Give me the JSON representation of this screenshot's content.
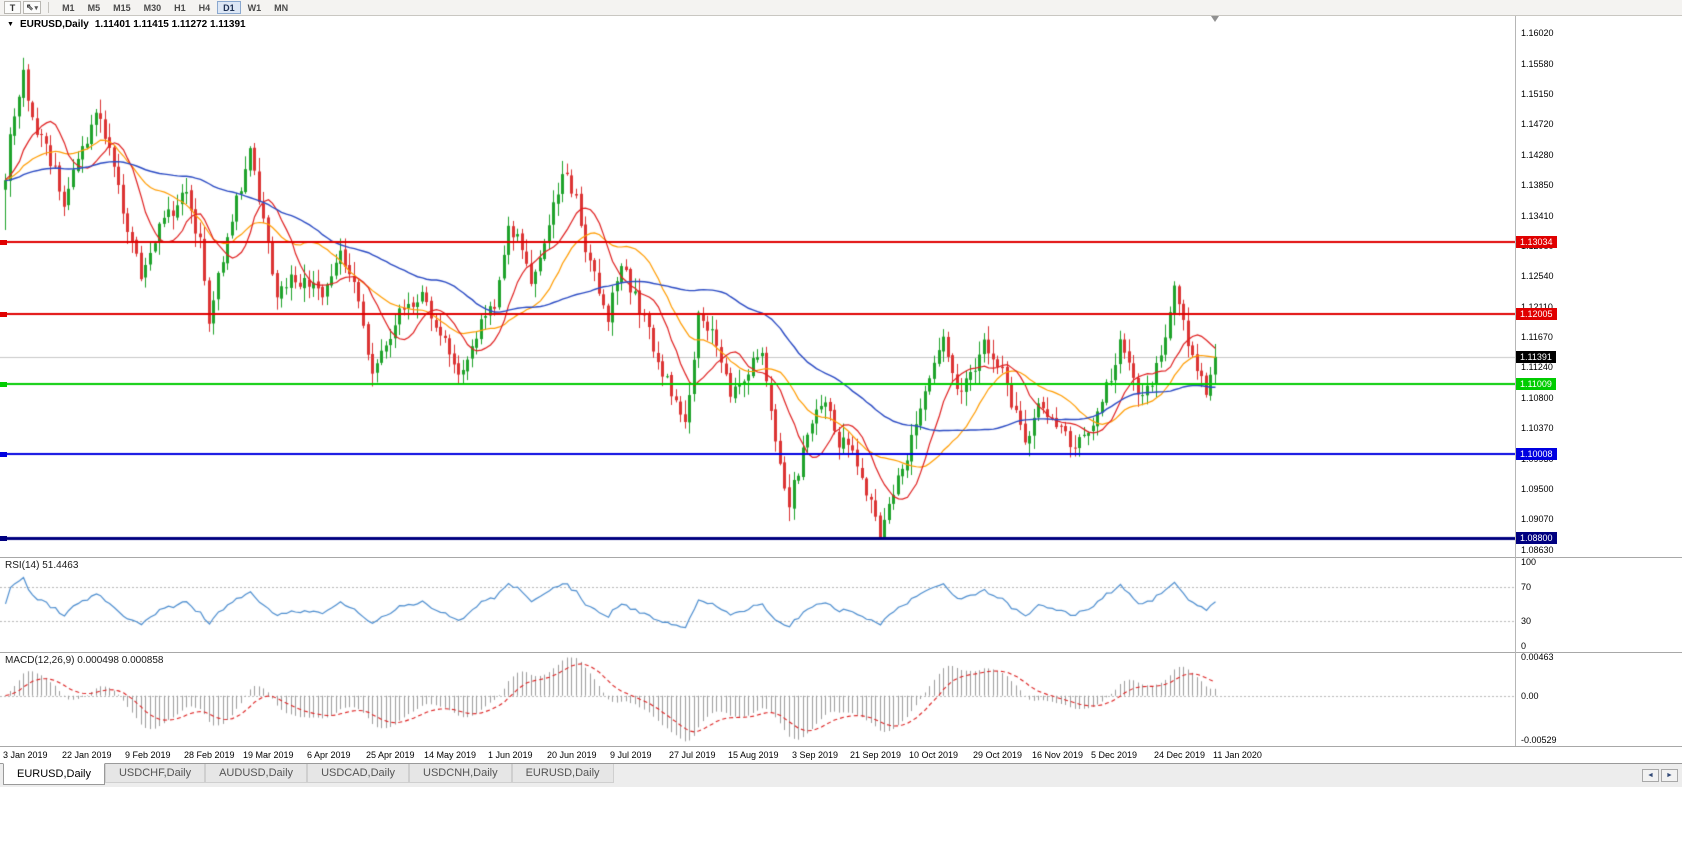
{
  "toolbar": {
    "chart_tool_label": "T",
    "cursor_glyph": "⇖",
    "dropdown_glyph": "▾",
    "timeframes": [
      "M1",
      "M5",
      "M15",
      "M30",
      "H1",
      "H4",
      "D1",
      "W1",
      "MN"
    ],
    "active_timeframe": "D1"
  },
  "chart": {
    "menu_arrow_glyph": "▼",
    "symbol_title": "EURUSD,Daily",
    "ohlc_text": "1.11401 1.11415 1.11272 1.11391"
  },
  "chart_data": {
    "type": "candlestick",
    "title": "EURUSD,Daily",
    "ohlc_display": "1.11401 1.11415 1.11272 1.11391",
    "price_axis_ticks": [
      "1.16020",
      "1.15580",
      "1.15150",
      "1.14720",
      "1.14280",
      "1.13850",
      "1.13410",
      "1.12980",
      "1.12540",
      "1.12110",
      "1.11670",
      "1.11240",
      "1.10800",
      "1.10370",
      "1.09930",
      "1.09500",
      "1.09070",
      "1.08630"
    ],
    "price_max": 1.16263,
    "price_min": 1.0853,
    "candle_count": 268,
    "price_path_anchors": [
      [
        0,
        1.139
      ],
      [
        1,
        1.1455
      ],
      [
        2,
        1.1485
      ],
      [
        4,
        1.155
      ],
      [
        5,
        1.1495
      ],
      [
        7,
        1.1465
      ],
      [
        9,
        1.144
      ],
      [
        13,
        1.1365
      ],
      [
        16,
        1.142
      ],
      [
        20,
        1.149
      ],
      [
        23,
        1.144
      ],
      [
        26,
        1.135
      ],
      [
        30,
        1.1262
      ],
      [
        34,
        1.133
      ],
      [
        40,
        1.137
      ],
      [
        43,
        1.13
      ],
      [
        45,
        1.1195
      ],
      [
        49,
        1.13
      ],
      [
        54,
        1.1445
      ],
      [
        57,
        1.133
      ],
      [
        60,
        1.1225
      ],
      [
        64,
        1.1255
      ],
      [
        70,
        1.123
      ],
      [
        74,
        1.129
      ],
      [
        78,
        1.122
      ],
      [
        81,
        1.112
      ],
      [
        85,
        1.1165
      ],
      [
        88,
        1.1215
      ],
      [
        92,
        1.123
      ],
      [
        96,
        1.118
      ],
      [
        100,
        1.1115
      ],
      [
        104,
        1.1175
      ],
      [
        108,
        1.121
      ],
      [
        111,
        1.133
      ],
      [
        114,
        1.1295
      ],
      [
        116,
        1.125
      ],
      [
        119,
        1.131
      ],
      [
        123,
        1.14
      ],
      [
        126,
        1.137
      ],
      [
        128,
        1.1285
      ],
      [
        133,
        1.12
      ],
      [
        136,
        1.127
      ],
      [
        140,
        1.121
      ],
      [
        145,
        1.112
      ],
      [
        148,
        1.108
      ],
      [
        150,
        1.1035
      ],
      [
        153,
        1.12
      ],
      [
        156,
        1.1175
      ],
      [
        160,
        1.1085
      ],
      [
        163,
        1.1105
      ],
      [
        167,
        1.115
      ],
      [
        171,
        1.099
      ],
      [
        173,
        1.093
      ],
      [
        177,
        1.103
      ],
      [
        181,
        1.1075
      ],
      [
        184,
        1.1015
      ],
      [
        186,
        1.102
      ],
      [
        189,
        1.096
      ],
      [
        193,
        1.0888
      ],
      [
        197,
        1.096
      ],
      [
        201,
        1.104
      ],
      [
        204,
        1.11
      ],
      [
        207,
        1.116
      ],
      [
        211,
        1.108
      ],
      [
        214,
        1.113
      ],
      [
        216,
        1.1155
      ],
      [
        220,
        1.1115
      ],
      [
        225,
        1.1015
      ],
      [
        228,
        1.1075
      ],
      [
        231,
        1.1055
      ],
      [
        236,
        1.1
      ],
      [
        240,
        1.105
      ],
      [
        244,
        1.1105
      ],
      [
        246,
        1.117
      ],
      [
        248,
        1.112
      ],
      [
        251,
        1.108
      ],
      [
        254,
        1.112
      ],
      [
        258,
        1.1235
      ],
      [
        261,
        1.1165
      ],
      [
        263,
        1.112
      ],
      [
        265,
        1.109
      ],
      [
        266,
        1.1115
      ],
      [
        267,
        1.11391
      ]
    ],
    "colors": {
      "up": "#1fa32b",
      "down": "#dc3434",
      "ma_fast": "#e02020",
      "ma_mid": "#ff9c00",
      "ma_slow": "#2b4bc4",
      "bid_line": "#c8c8c8",
      "background": "#ffffff"
    },
    "moving_average_periods": {
      "fast": 10,
      "mid": 21,
      "slow": 50
    },
    "horizontal_lines": [
      {
        "label": "1.13034",
        "price": 1.13034,
        "color": "#e00000",
        "width": 2
      },
      {
        "label": "1.12005",
        "price": 1.12005,
        "color": "#e00000",
        "width": 2
      },
      {
        "label": "1.11009",
        "price": 1.11009,
        "color": "#00cc00",
        "width": 2
      },
      {
        "label": "1.10008",
        "price": 1.10008,
        "color": "#0000e0",
        "width": 2
      },
      {
        "label": "1.08800",
        "price": 1.088,
        "color": "#000080",
        "width": 3
      }
    ],
    "current_price": {
      "label": "1.11391",
      "value": 1.11391,
      "bg": "#000000",
      "fg": "#ffffff"
    },
    "date_axis_ticks": [
      "3 Jan 2019",
      "22 Jan 2019",
      "9 Feb 2019",
      "28 Feb 2019",
      "19 Mar 2019",
      "6 Apr 2019",
      "25 Apr 2019",
      "14 May 2019",
      "1 Jun 2019",
      "20 Jun 2019",
      "9 Jul 2019",
      "27 Jul 2019",
      "15 Aug 2019",
      "3 Sep 2019",
      "21 Sep 2019",
      "10 Oct 2019",
      "29 Oct 2019",
      "16 Nov 2019",
      "5 Dec 2019",
      "24 Dec 2019",
      "11 Jan 2020"
    ],
    "rsi": {
      "label": "RSI(14) 51.4463",
      "period": 14,
      "current": 51.4463,
      "axis_ticks": [
        "100",
        "70",
        "30",
        "0"
      ],
      "levels": [
        70,
        30
      ],
      "color": "#4f8fd0"
    },
    "macd": {
      "label": "MACD(12,26,9) 0.000498 0.000858",
      "fast": 12,
      "slow": 26,
      "signal": 9,
      "current_macd": "0.000498",
      "current_signal": "0.000858",
      "axis_ticks": [
        "0.00463",
        "0.00",
        "-0.00529"
      ],
      "scale_max": 0.00463,
      "scale_min": -0.00529,
      "histogram_color": "#9e9e9e",
      "signal_color": "#dd2222"
    }
  },
  "tabs": {
    "labels": [
      "EURUSD,Daily",
      "USDCHF,Daily",
      "AUDUSD,Daily",
      "USDCAD,Daily",
      "USDCNH,Daily",
      "EURUSD,Daily"
    ],
    "active_index": 0
  },
  "scrollbar": {
    "left_glyph": "◄",
    "right_glyph": "►"
  }
}
